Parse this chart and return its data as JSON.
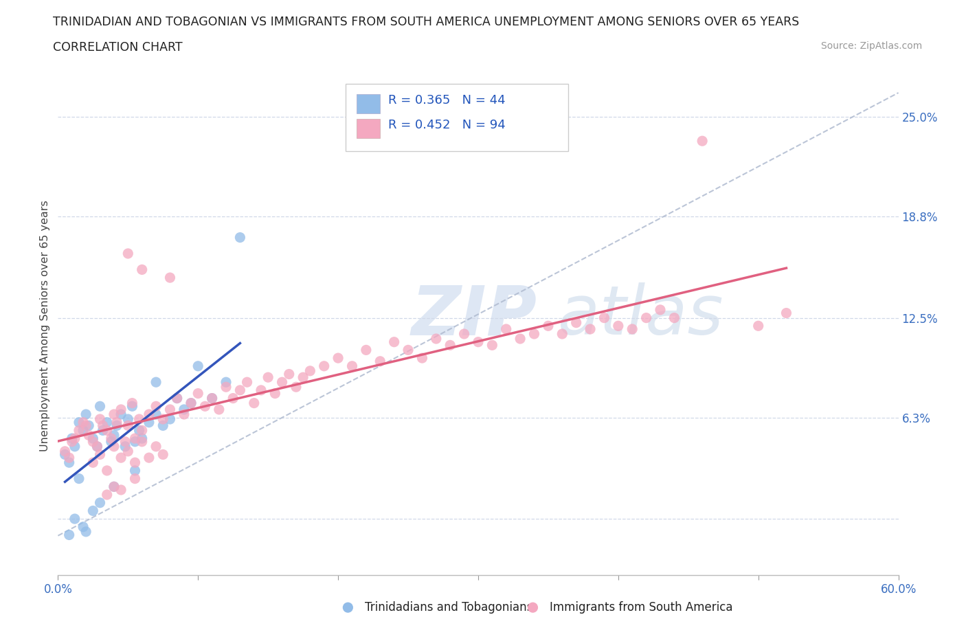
{
  "title_line1": "TRINIDADIAN AND TOBAGONIAN VS IMMIGRANTS FROM SOUTH AMERICA UNEMPLOYMENT AMONG SENIORS OVER 65 YEARS",
  "title_line2": "CORRELATION CHART",
  "source": "Source: ZipAtlas.com",
  "ylabel": "Unemployment Among Seniors over 65 years",
  "legend_label1": "Trinidadians and Tobagonians",
  "legend_label2": "Immigrants from South America",
  "R1": 0.365,
  "N1": 44,
  "R2": 0.452,
  "N2": 94,
  "color1": "#92bce8",
  "color2": "#f4a8c0",
  "trendline1_color": "#3355bb",
  "trendline2_color": "#e06080",
  "dashed_line_color": "#b0bbd0",
  "background_color": "#ffffff",
  "xmin": 0.0,
  "xmax": 0.6,
  "ymin": -0.035,
  "ymax": 0.275,
  "ytick_vals": [
    0.0,
    0.063,
    0.125,
    0.188,
    0.25
  ],
  "ytick_labels": [
    "",
    "6.3%",
    "12.5%",
    "18.8%",
    "25.0%"
  ],
  "xtick_vals": [
    0.0,
    0.1,
    0.2,
    0.3,
    0.4,
    0.5,
    0.6
  ],
  "xtick_labels": [
    "0.0%",
    "",
    "",
    "",
    "",
    "",
    "60.0%"
  ],
  "watermark_zip": "ZIP",
  "watermark_atlas": "atlas",
  "scatter1_x": [
    0.005,
    0.008,
    0.01,
    0.012,
    0.015,
    0.018,
    0.02,
    0.022,
    0.025,
    0.028,
    0.03,
    0.032,
    0.035,
    0.038,
    0.04,
    0.042,
    0.045,
    0.048,
    0.05,
    0.053,
    0.055,
    0.058,
    0.06,
    0.065,
    0.07,
    0.075,
    0.08,
    0.085,
    0.09,
    0.095,
    0.1,
    0.11,
    0.12,
    0.13,
    0.03,
    0.025,
    0.018,
    0.012,
    0.008,
    0.055,
    0.07,
    0.04,
    0.02,
    0.015
  ],
  "scatter1_y": [
    0.04,
    0.035,
    0.05,
    0.045,
    0.06,
    0.055,
    0.065,
    0.058,
    0.05,
    0.045,
    0.07,
    0.055,
    0.06,
    0.048,
    0.052,
    0.058,
    0.065,
    0.045,
    0.062,
    0.07,
    0.048,
    0.055,
    0.05,
    0.06,
    0.065,
    0.058,
    0.062,
    0.075,
    0.068,
    0.072,
    0.095,
    0.075,
    0.085,
    0.175,
    0.01,
    0.005,
    -0.005,
    0.0,
    -0.01,
    0.03,
    0.085,
    0.02,
    -0.008,
    0.025
  ],
  "scatter2_x": [
    0.005,
    0.008,
    0.01,
    0.012,
    0.015,
    0.018,
    0.02,
    0.022,
    0.025,
    0.028,
    0.03,
    0.032,
    0.035,
    0.038,
    0.04,
    0.042,
    0.045,
    0.048,
    0.05,
    0.053,
    0.055,
    0.058,
    0.06,
    0.065,
    0.07,
    0.075,
    0.08,
    0.085,
    0.09,
    0.095,
    0.1,
    0.105,
    0.11,
    0.115,
    0.12,
    0.125,
    0.13,
    0.135,
    0.14,
    0.145,
    0.15,
    0.155,
    0.16,
    0.165,
    0.17,
    0.175,
    0.18,
    0.19,
    0.2,
    0.21,
    0.22,
    0.23,
    0.24,
    0.25,
    0.26,
    0.27,
    0.28,
    0.29,
    0.3,
    0.31,
    0.32,
    0.33,
    0.34,
    0.35,
    0.36,
    0.37,
    0.38,
    0.39,
    0.4,
    0.41,
    0.42,
    0.43,
    0.44,
    0.46,
    0.5,
    0.52,
    0.025,
    0.03,
    0.035,
    0.04,
    0.045,
    0.05,
    0.055,
    0.06,
    0.065,
    0.07,
    0.075,
    0.08,
    0.05,
    0.06,
    0.035,
    0.04,
    0.045,
    0.055
  ],
  "scatter2_y": [
    0.042,
    0.038,
    0.048,
    0.05,
    0.055,
    0.06,
    0.058,
    0.052,
    0.048,
    0.045,
    0.062,
    0.058,
    0.055,
    0.05,
    0.065,
    0.06,
    0.068,
    0.048,
    0.058,
    0.072,
    0.05,
    0.062,
    0.055,
    0.065,
    0.07,
    0.062,
    0.068,
    0.075,
    0.065,
    0.072,
    0.078,
    0.07,
    0.075,
    0.068,
    0.082,
    0.075,
    0.08,
    0.085,
    0.072,
    0.08,
    0.088,
    0.078,
    0.085,
    0.09,
    0.082,
    0.088,
    0.092,
    0.095,
    0.1,
    0.095,
    0.105,
    0.098,
    0.11,
    0.105,
    0.1,
    0.112,
    0.108,
    0.115,
    0.11,
    0.108,
    0.118,
    0.112,
    0.115,
    0.12,
    0.115,
    0.122,
    0.118,
    0.125,
    0.12,
    0.118,
    0.125,
    0.13,
    0.125,
    0.235,
    0.12,
    0.128,
    0.035,
    0.04,
    0.03,
    0.045,
    0.038,
    0.042,
    0.035,
    0.048,
    0.038,
    0.045,
    0.04,
    0.15,
    0.165,
    0.155,
    0.015,
    0.02,
    0.018,
    0.025
  ]
}
